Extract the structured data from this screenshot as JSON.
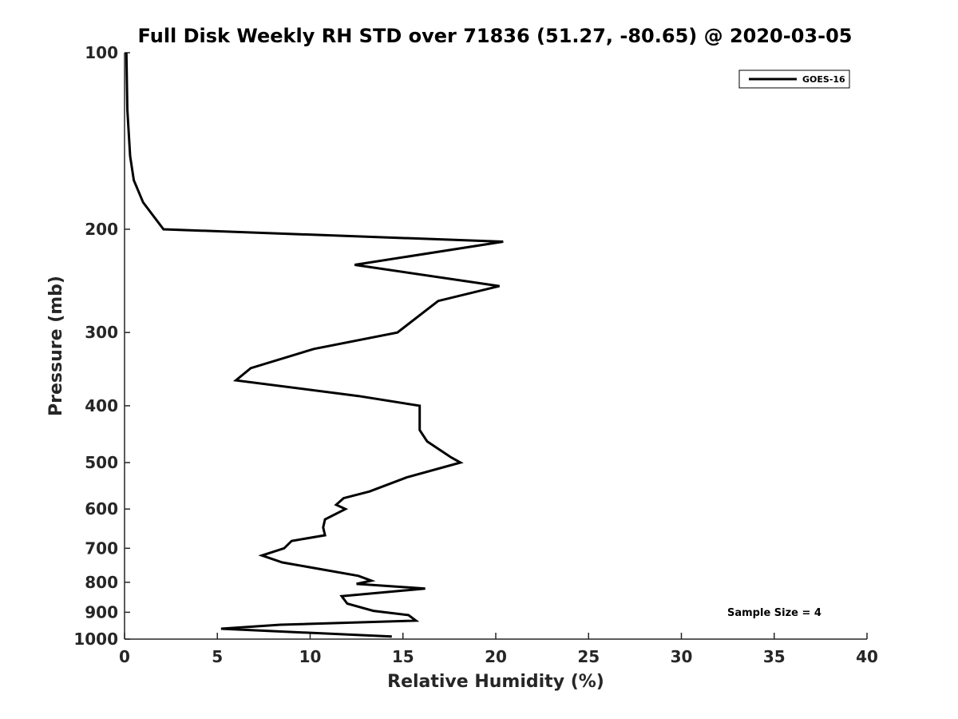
{
  "chart_data": {
    "type": "line",
    "title": "Full Disk Weekly RH STD over 71836 (51.27, -80.65) @ 2020-03-05",
    "xlabel": "Relative Humidity (%)",
    "ylabel": "Pressure (mb)",
    "xlim": [
      0,
      40
    ],
    "ylim": [
      100,
      1000
    ],
    "y_scale": "log",
    "y_reversed": true,
    "x_ticks": [
      0,
      5,
      10,
      15,
      20,
      25,
      30,
      35,
      40
    ],
    "y_ticks": [
      100,
      200,
      300,
      400,
      500,
      600,
      700,
      800,
      900,
      1000
    ],
    "grid": false,
    "legend_position": "top-right",
    "annotation": "Sample Size = 4",
    "series": [
      {
        "name": "GOES-16",
        "color": "#000000",
        "points": [
          [
            0.1,
            100
          ],
          [
            0.15,
            125
          ],
          [
            0.3,
            150
          ],
          [
            0.5,
            165
          ],
          [
            1.0,
            180
          ],
          [
            2.1,
            200
          ],
          [
            20.4,
            210
          ],
          [
            12.4,
            230
          ],
          [
            20.2,
            250
          ],
          [
            16.9,
            265
          ],
          [
            14.7,
            300
          ],
          [
            10.2,
            320
          ],
          [
            6.8,
            345
          ],
          [
            6.0,
            362
          ],
          [
            12.6,
            385
          ],
          [
            15.9,
            400
          ],
          [
            15.9,
            440
          ],
          [
            16.3,
            460
          ],
          [
            17.6,
            490
          ],
          [
            18.1,
            500
          ],
          [
            15.2,
            530
          ],
          [
            13.2,
            560
          ],
          [
            11.8,
            575
          ],
          [
            11.4,
            590
          ],
          [
            11.9,
            600
          ],
          [
            10.8,
            625
          ],
          [
            10.7,
            645
          ],
          [
            10.8,
            665
          ],
          [
            9.0,
            680
          ],
          [
            8.6,
            700
          ],
          [
            7.4,
            720
          ],
          [
            8.5,
            740
          ],
          [
            12.6,
            780
          ],
          [
            13.3,
            795
          ],
          [
            12.5,
            805
          ],
          [
            16.2,
            820
          ],
          [
            11.7,
            845
          ],
          [
            12.0,
            870
          ],
          [
            13.4,
            895
          ],
          [
            15.3,
            910
          ],
          [
            15.7,
            930
          ],
          [
            8.4,
            945
          ],
          [
            5.2,
            960
          ],
          [
            14.4,
            990
          ]
        ]
      }
    ]
  }
}
